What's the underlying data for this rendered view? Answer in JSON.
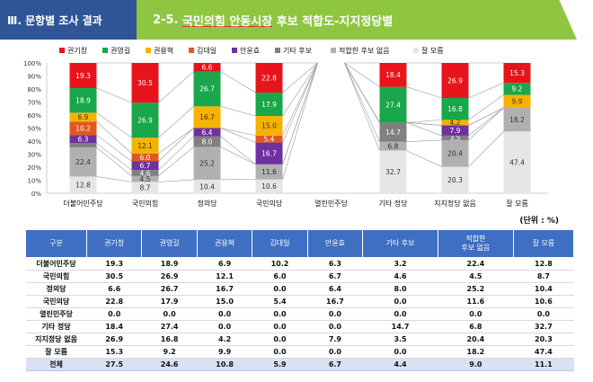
{
  "header": {
    "section_label": "Ⅲ. 문항별 조사 결과",
    "title_prefix": "2-5. ",
    "title_underlined": "국민의힘 안동시장",
    "title_suffix": " 후보 적합도-지지정당별"
  },
  "unit_label": "(단위 : %)",
  "colors": {
    "권기창": "#e8141b",
    "권영길": "#1aa64b",
    "권용혁": "#f5b200",
    "김대일": "#e0581f",
    "안윤효": "#7030a0",
    "기타 후보": "#808080",
    "적합한 후보 없음": "#b0b0b0",
    "잘 모름": "#e6e6e6"
  },
  "chart_data": {
    "type": "bar",
    "stacked": true,
    "percent": true,
    "categories": [
      "더불어민주당",
      "국민의힘",
      "정의당",
      "국민의당",
      "열린민주당",
      "기타 정당",
      "지지정당 없음",
      "잘 모름"
    ],
    "yticks": [
      "0%",
      "10%",
      "20%",
      "30%",
      "40%",
      "50%",
      "60%",
      "70%",
      "80%",
      "90%",
      "100%"
    ],
    "ylim": [
      0,
      100
    ],
    "legend_position": "top",
    "series": [
      {
        "name": "권기창",
        "values": [
          19.3,
          30.5,
          6.6,
          22.8,
          0.0,
          18.4,
          26.9,
          15.3
        ]
      },
      {
        "name": "권영길",
        "values": [
          18.9,
          26.9,
          26.7,
          17.9,
          0.0,
          27.4,
          16.8,
          9.2
        ]
      },
      {
        "name": "권용혁",
        "values": [
          6.9,
          12.1,
          16.7,
          15.0,
          0.0,
          0.0,
          4.2,
          9.9
        ]
      },
      {
        "name": "김대일",
        "values": [
          10.2,
          6.0,
          0.0,
          5.4,
          0.0,
          0.0,
          0.0,
          0.0
        ]
      },
      {
        "name": "안윤효",
        "values": [
          6.3,
          6.7,
          6.4,
          16.7,
          0.0,
          0.0,
          7.9,
          0.0
        ]
      },
      {
        "name": "기타 후보",
        "values": [
          3.2,
          4.6,
          8.0,
          0.0,
          0.0,
          14.7,
          3.5,
          0.0
        ]
      },
      {
        "name": "적합한 후보 없음",
        "values": [
          22.4,
          4.5,
          25.2,
          11.6,
          0.0,
          6.8,
          20.4,
          18.2
        ]
      },
      {
        "name": "잘 모름",
        "values": [
          12.8,
          8.7,
          10.4,
          10.6,
          0.0,
          32.7,
          20.3,
          47.4
        ]
      }
    ]
  },
  "table": {
    "headers": [
      "구분",
      "권기창",
      "권영길",
      "권용혁",
      "김대일",
      "안윤효",
      "기타 후보",
      "적합한\n후보 없음",
      "잘 모름"
    ],
    "rows": [
      {
        "label": "더불어민주당",
        "values": [
          "19.3",
          "18.9",
          "6.9",
          "10.2",
          "6.3",
          "3.2",
          "22.4",
          "12.8"
        ]
      },
      {
        "label": "국민의힘",
        "values": [
          "30.5",
          "26.9",
          "12.1",
          "6.0",
          "6.7",
          "4.6",
          "4.5",
          "8.7"
        ]
      },
      {
        "label": "정의당",
        "values": [
          "6.6",
          "26.7",
          "16.7",
          "0.0",
          "6.4",
          "8.0",
          "25.2",
          "10.4"
        ]
      },
      {
        "label": "국민의당",
        "values": [
          "22.8",
          "17.9",
          "15.0",
          "5.4",
          "16.7",
          "0.0",
          "11.6",
          "10.6"
        ]
      },
      {
        "label": "열린민주당",
        "values": [
          "0.0",
          "0.0",
          "0.0",
          "0.0",
          "0.0",
          "0.0",
          "0.0",
          "0.0"
        ]
      },
      {
        "label": "기타 정당",
        "values": [
          "18.4",
          "27.4",
          "0.0",
          "0.0",
          "0.0",
          "14.7",
          "6.8",
          "32.7"
        ]
      },
      {
        "label": "지지정당 없음",
        "values": [
          "26.9",
          "16.8",
          "4.2",
          "0.0",
          "7.9",
          "3.5",
          "20.4",
          "20.3"
        ]
      },
      {
        "label": "잘 모름",
        "values": [
          "15.3",
          "9.2",
          "9.9",
          "0.0",
          "0.0",
          "0.0",
          "18.2",
          "47.4"
        ]
      },
      {
        "label": "전체",
        "values": [
          "27.5",
          "24.6",
          "10.8",
          "5.9",
          "6.7",
          "4.4",
          "9.0",
          "11.1"
        ]
      }
    ]
  }
}
